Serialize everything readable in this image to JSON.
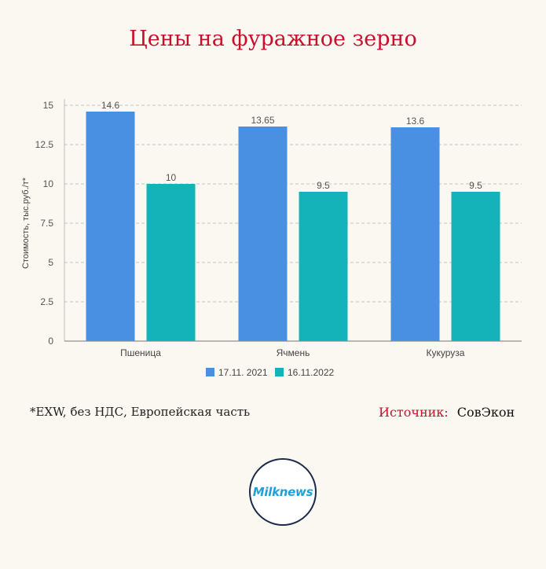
{
  "title": "Цены на фуражное зерно",
  "footnote": "*EXW, без НДС, Европейская часть",
  "source": {
    "label": "Источник:",
    "value": "СовЭкон"
  },
  "logo_text": "Milknews",
  "colors": {
    "title": "#c8102e",
    "series1": "#4a90e2",
    "series2": "#14b3b9"
  },
  "chart_data": {
    "type": "bar",
    "categories": [
      "Пшеница",
      "Ячмень",
      "Кукуруза"
    ],
    "series": [
      {
        "name": "17.11. 2021",
        "values": [
          14.6,
          13.65,
          13.6
        ],
        "value_labels": [
          "14.6",
          "13.65",
          "13.6"
        ],
        "color": "#4a90e2"
      },
      {
        "name": "16.11.2022",
        "values": [
          10,
          9.5,
          9.5
        ],
        "value_labels": [
          "10",
          "9.5",
          "9.5"
        ],
        "color": "#14b3b9"
      }
    ],
    "ylabel": "Стоимость, тыс.руб./т*",
    "ylim": [
      0,
      15
    ],
    "yticks": [
      0,
      2.5,
      5,
      7.5,
      10,
      12.5,
      15
    ],
    "ytick_labels": [
      "0",
      "2.5",
      "5",
      "7.5",
      "10",
      "12.5",
      "15"
    ],
    "grid": true,
    "legend": "bottom"
  }
}
